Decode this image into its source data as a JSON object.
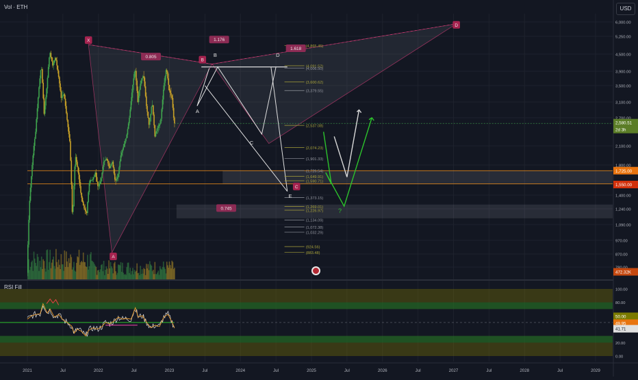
{
  "header": {
    "title": "Vol · ETH",
    "currency": "USD",
    "rsi_title": "RSI Fill"
  },
  "colors": {
    "background": "#131722",
    "up": "#3fa34d",
    "down": "#c9a227",
    "pattern": "#e6407e",
    "orange_line": "#f7931a",
    "green_arrow": "#2cc22c",
    "white_arrow": "#d9d9d9",
    "rsi_line": "#e0e0e0",
    "rsi_ma": "#e89a2e"
  },
  "price_axis": {
    "ticks": [
      "6,000.00",
      "5,250.00",
      "4,500.00",
      "3,900.00",
      "3,500.00",
      "3,100.00",
      "2,700.00",
      "2,100.00",
      "1,800.00",
      "1,400.00",
      "1,240.00",
      "1,090.00",
      "970.00",
      "870.00",
      "780.00"
    ],
    "last_price": "2,580.51",
    "countdown": "2d 3h",
    "level_1725": "1,725.00",
    "level_1550": "1,550.00",
    "volume_value": "472.32K"
  },
  "rsi_axis": {
    "ticks": [
      "100.00",
      "80.00",
      "20.00",
      "0.00"
    ],
    "badge_50": "50.00",
    "badge_4995": "49.95",
    "badge_4171": "41.71"
  },
  "time_axis": {
    "labels": [
      "2021",
      "Jul",
      "2022",
      "Jul",
      "2023",
      "Jul",
      "2024",
      "Jul",
      "2025",
      "Jul",
      "2026",
      "Jul",
      "2027",
      "Jul",
      "2028",
      "Jul",
      "2029"
    ]
  },
  "pattern_points": {
    "X": "X",
    "A": "A",
    "B": "B",
    "C": "C",
    "D": "D",
    "ratio_xb": "0.805",
    "ratio_ac": "1.176",
    "ratio_bd": "1.618",
    "ratio_lower": "0.745"
  },
  "wave_labels": {
    "A": "A",
    "B": "B",
    "C": "C",
    "D": "D",
    "E": "E",
    "question": "?"
  },
  "fib_levels": [
    "(4,865.45)",
    "(4,091.52)",
    "(4,006.50)",
    "(3,600.62)",
    "(3,379.55)",
    "(2,537.08)",
    "(2,074.23)",
    "(1,901.33)",
    "(1,726.54)",
    "(1,649.91)",
    "(1,590.71)",
    "(1,373.15)",
    "(1,226.97)",
    "(1,269.01)",
    "(1,134.09)",
    "(1,072.38)",
    "(1,032.29)",
    "(924.56)",
    "(883.48)"
  ],
  "chart_data": {
    "type": "line",
    "title": "Vol · ETH",
    "price_ticks": [
      6000,
      5250,
      4500,
      3900,
      3500,
      3100,
      2700,
      2100,
      1800,
      1400,
      1240,
      1090,
      970,
      870,
      780
    ],
    "rsi_ticks": [
      100,
      80,
      20,
      0
    ],
    "x_labels": [
      "2021",
      "Jul",
      "2022",
      "Jul",
      "2023",
      "Jul",
      "2024",
      "Jul",
      "2025",
      "Jul",
      "2026",
      "Jul",
      "2027",
      "Jul",
      "2028",
      "Jul",
      "2029"
    ],
    "last_price": 2580.51,
    "horizontal_levels": [
      1725,
      1550
    ],
    "price_path": [
      {
        "t": 0.0,
        "p": 740
      },
      {
        "t": 0.04,
        "p": 1400
      },
      {
        "t": 0.08,
        "p": 1900
      },
      {
        "t": 0.12,
        "p": 2400
      },
      {
        "t": 0.16,
        "p": 3300
      },
      {
        "t": 0.2,
        "p": 4100
      },
      {
        "t": 0.24,
        "p": 2800
      },
      {
        "t": 0.28,
        "p": 3500
      },
      {
        "t": 0.32,
        "p": 4600
      },
      {
        "t": 0.36,
        "p": 4100
      },
      {
        "t": 0.4,
        "p": 4400
      },
      {
        "t": 0.44,
        "p": 3800
      },
      {
        "t": 0.48,
        "p": 3200
      },
      {
        "t": 0.52,
        "p": 3300
      },
      {
        "t": 0.56,
        "p": 2700
      },
      {
        "t": 0.6,
        "p": 2200
      },
      {
        "t": 0.64,
        "p": 1100
      },
      {
        "t": 0.68,
        "p": 1950
      },
      {
        "t": 0.72,
        "p": 1700
      },
      {
        "t": 0.76,
        "p": 1400
      },
      {
        "t": 0.8,
        "p": 1250
      },
      {
        "t": 0.84,
        "p": 1200
      },
      {
        "t": 0.88,
        "p": 1600
      },
      {
        "t": 0.92,
        "p": 1600
      },
      {
        "t": 0.96,
        "p": 1700
      },
      {
        "t": 1.0,
        "p": 1500
      },
      {
        "t": 1.04,
        "p": 1600
      },
      {
        "t": 1.08,
        "p": 1850
      },
      {
        "t": 1.12,
        "p": 1900
      },
      {
        "t": 1.16,
        "p": 1750
      },
      {
        "t": 1.2,
        "p": 1850
      },
      {
        "t": 1.24,
        "p": 1580
      },
      {
        "t": 1.28,
        "p": 1650
      },
      {
        "t": 1.32,
        "p": 1950
      },
      {
        "t": 1.36,
        "p": 2100
      },
      {
        "t": 1.4,
        "p": 2300
      },
      {
        "t": 1.44,
        "p": 2700
      },
      {
        "t": 1.48,
        "p": 3400
      },
      {
        "t": 1.52,
        "p": 4000
      },
      {
        "t": 1.56,
        "p": 3100
      },
      {
        "t": 1.6,
        "p": 3600
      },
      {
        "t": 1.64,
        "p": 3800
      },
      {
        "t": 1.68,
        "p": 3000
      },
      {
        "t": 1.72,
        "p": 2500
      },
      {
        "t": 1.76,
        "p": 3100
      },
      {
        "t": 1.8,
        "p": 2300
      },
      {
        "t": 1.84,
        "p": 2500
      },
      {
        "t": 1.88,
        "p": 2600
      },
      {
        "t": 1.92,
        "p": 3400
      },
      {
        "t": 1.96,
        "p": 4000
      },
      {
        "t": 2.0,
        "p": 3400
      },
      {
        "t": 2.04,
        "p": 3200
      },
      {
        "t": 2.07,
        "p": 2580
      }
    ],
    "rsi_path": [
      {
        "t": 0.0,
        "v": 55
      },
      {
        "t": 0.06,
        "v": 60
      },
      {
        "t": 0.12,
        "v": 62
      },
      {
        "t": 0.18,
        "v": 63
      },
      {
        "t": 0.22,
        "v": 78
      },
      {
        "t": 0.28,
        "v": 64
      },
      {
        "t": 0.32,
        "v": 70
      },
      {
        "t": 0.38,
        "v": 58
      },
      {
        "t": 0.44,
        "v": 62
      },
      {
        "t": 0.5,
        "v": 54
      },
      {
        "t": 0.56,
        "v": 50
      },
      {
        "t": 0.62,
        "v": 45
      },
      {
        "t": 0.66,
        "v": 34
      },
      {
        "t": 0.7,
        "v": 40
      },
      {
        "t": 0.76,
        "v": 37
      },
      {
        "t": 0.82,
        "v": 30
      },
      {
        "t": 0.86,
        "v": 38
      },
      {
        "t": 0.92,
        "v": 42
      },
      {
        "t": 0.98,
        "v": 40
      },
      {
        "t": 1.04,
        "v": 43
      },
      {
        "t": 1.1,
        "v": 50
      },
      {
        "t": 1.16,
        "v": 48
      },
      {
        "t": 1.22,
        "v": 52
      },
      {
        "t": 1.28,
        "v": 58
      },
      {
        "t": 1.34,
        "v": 55
      },
      {
        "t": 1.4,
        "v": 56
      },
      {
        "t": 1.46,
        "v": 55
      },
      {
        "t": 1.52,
        "v": 72
      },
      {
        "t": 1.56,
        "v": 58
      },
      {
        "t": 1.62,
        "v": 60
      },
      {
        "t": 1.68,
        "v": 50
      },
      {
        "t": 1.74,
        "v": 42
      },
      {
        "t": 1.8,
        "v": 46
      },
      {
        "t": 1.86,
        "v": 44
      },
      {
        "t": 1.92,
        "v": 58
      },
      {
        "t": 1.98,
        "v": 62
      },
      {
        "t": 2.04,
        "v": 50
      },
      {
        "t": 2.07,
        "v": 41.71
      }
    ],
    "rsi_values": {
      "upper_band": 50.0,
      "ma": 49.95,
      "current": 41.71
    }
  }
}
